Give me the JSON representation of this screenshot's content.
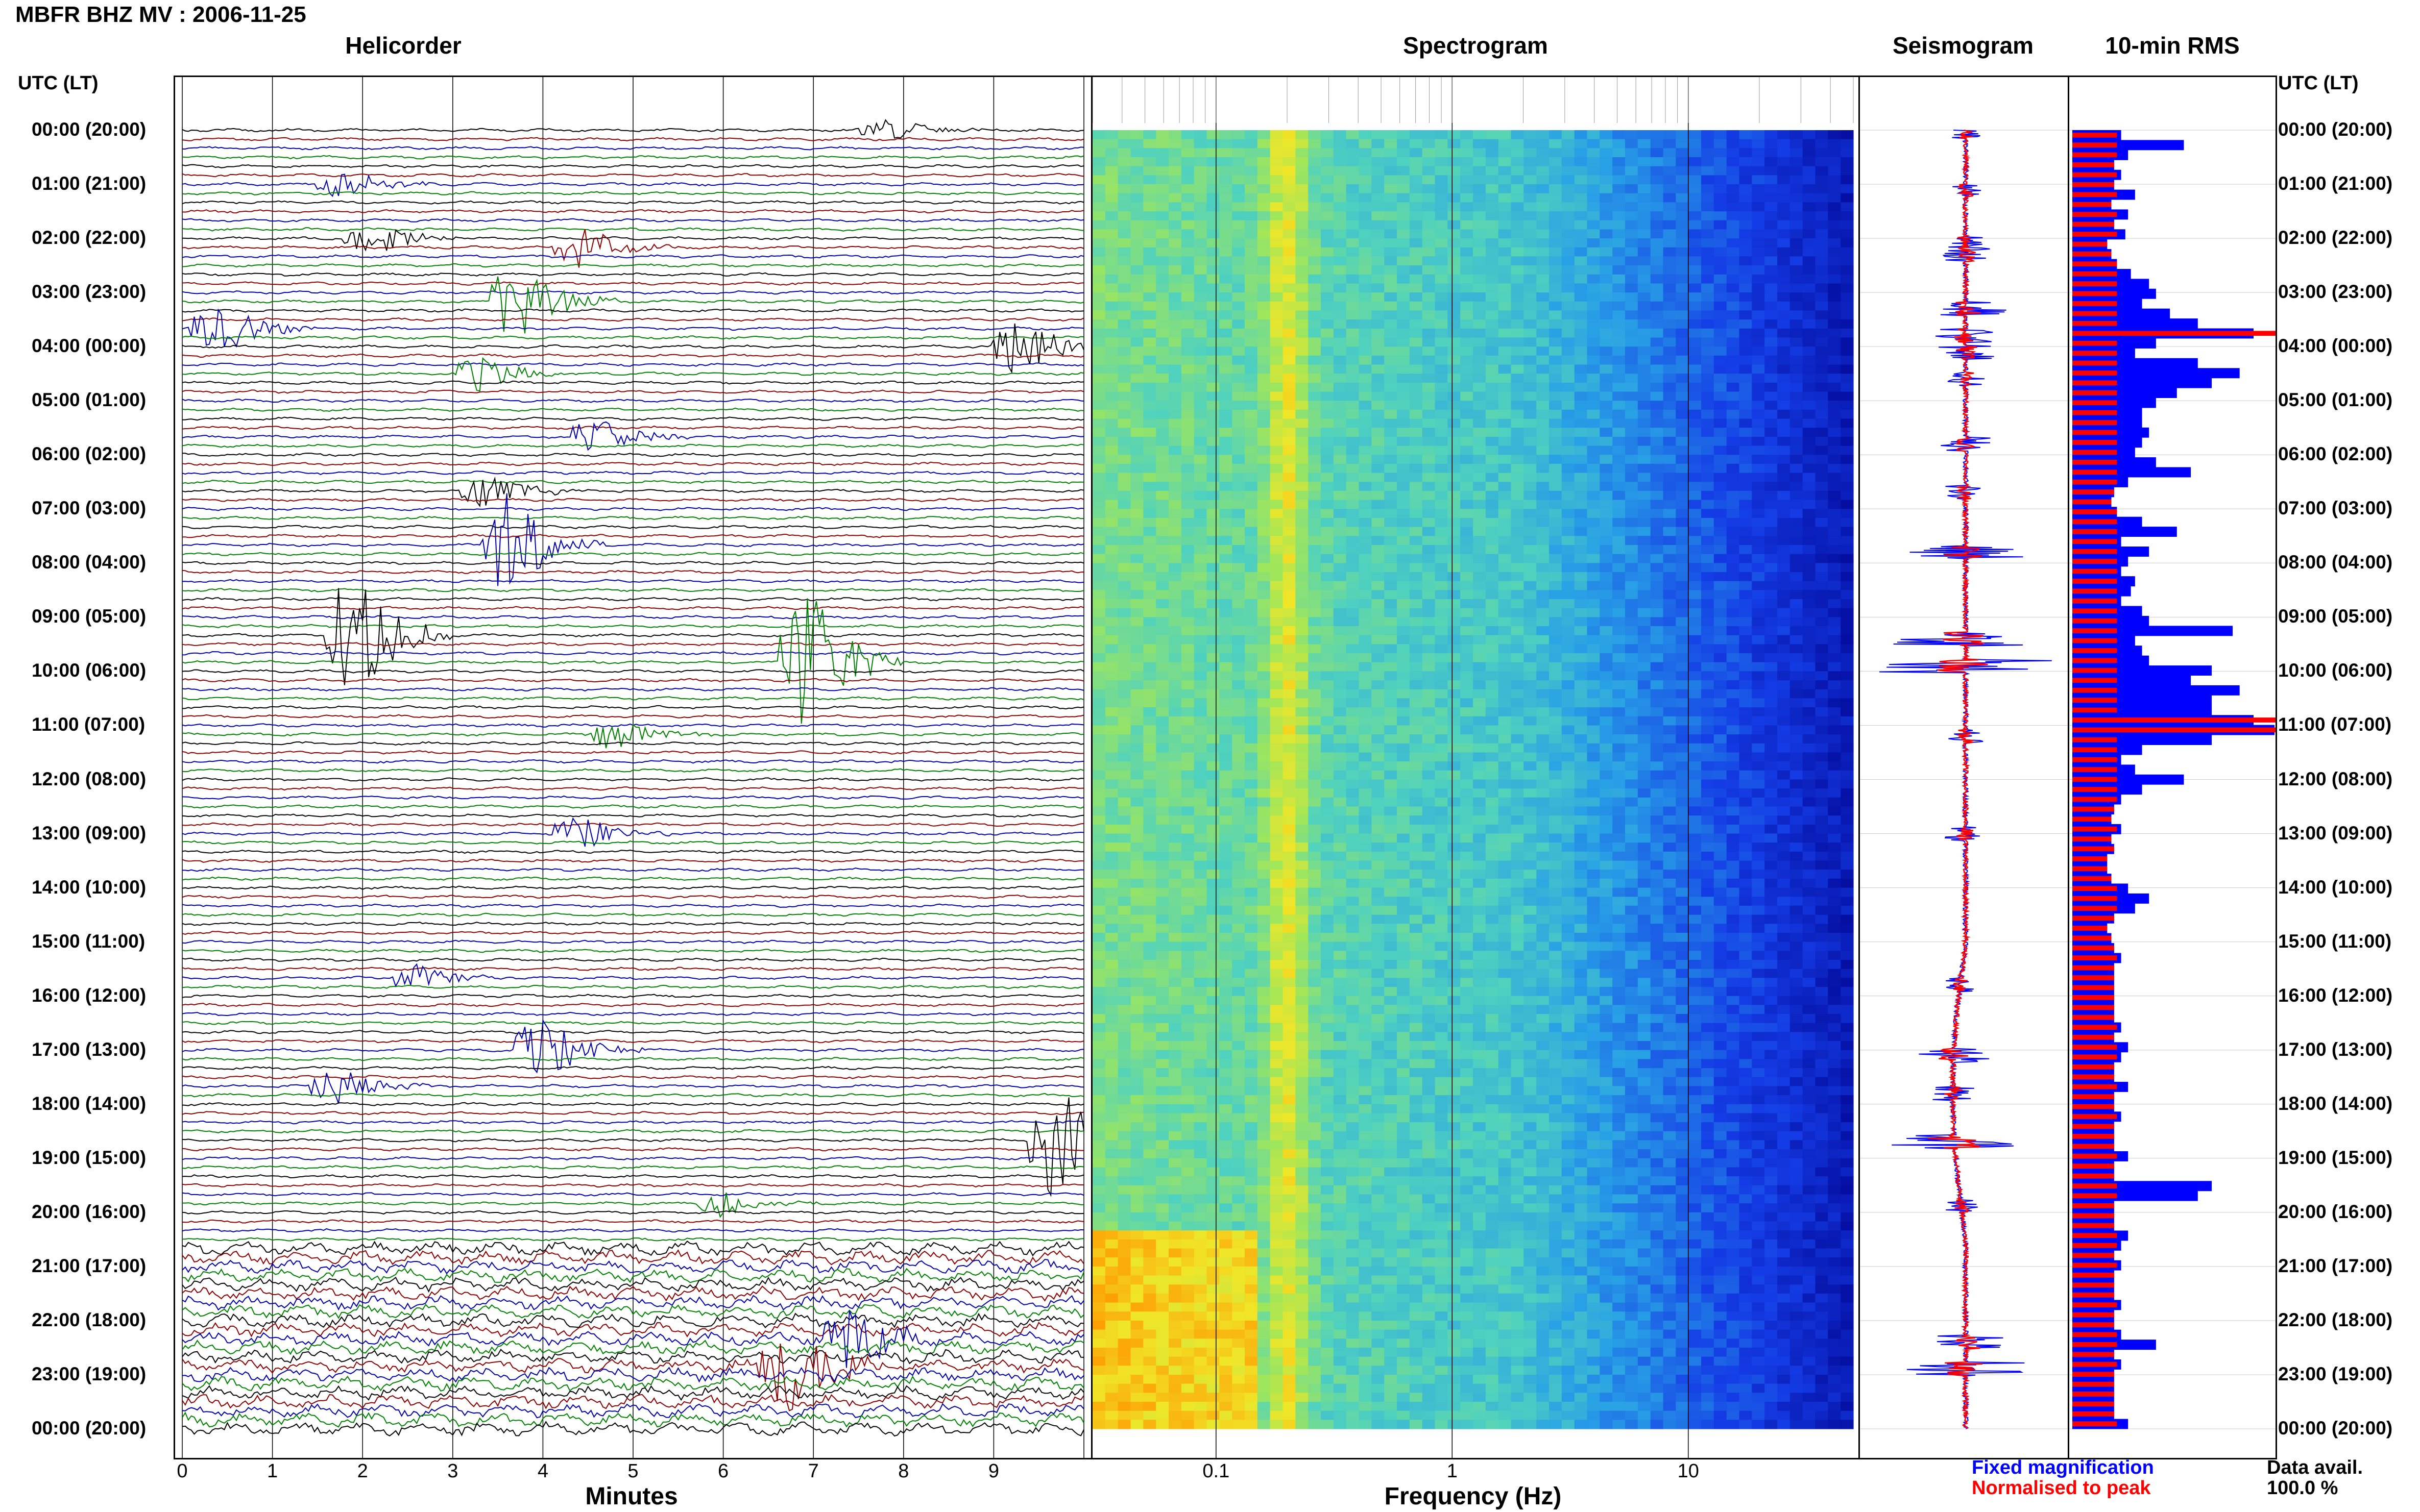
{
  "title": "MBFR BHZ MV : 2006-11-25",
  "panels": {
    "helicorder": "Helicorder",
    "spectrogram": "Spectrogram",
    "seismogram": "Seismogram",
    "rms": "10-min RMS"
  },
  "time_header": "UTC (LT)",
  "time_labels": [
    "00:00 (20:00)",
    "01:00 (21:00)",
    "02:00 (22:00)",
    "03:00 (23:00)",
    "04:00 (00:00)",
    "05:00 (01:00)",
    "06:00 (02:00)",
    "07:00 (03:00)",
    "08:00 (04:00)",
    "09:00 (05:00)",
    "10:00 (06:00)",
    "11:00 (07:00)",
    "12:00 (08:00)",
    "13:00 (09:00)",
    "14:00 (10:00)",
    "15:00 (11:00)",
    "16:00 (12:00)",
    "17:00 (13:00)",
    "18:00 (14:00)",
    "19:00 (15:00)",
    "20:00 (16:00)",
    "21:00 (17:00)",
    "22:00 (18:00)",
    "23:00 (19:00)",
    "00:00 (20:00)"
  ],
  "x_axis": {
    "minutes_label": "Minutes",
    "minutes_ticks": [
      "0",
      "1",
      "2",
      "3",
      "4",
      "5",
      "6",
      "7",
      "8",
      "9"
    ],
    "frequency_label": "Frequency (Hz)",
    "frequency_ticks": [
      "0.1",
      "1",
      "10"
    ]
  },
  "legend": {
    "fixed": "Fixed magnification",
    "normalised": "Normalised to peak"
  },
  "data_avail": {
    "label": "Data avail.",
    "value": "100.0 %"
  },
  "colors": {
    "trace_cycle": [
      "#000000",
      "#8b0000",
      "#0000aa",
      "#008000"
    ],
    "fixed": "#0000ff",
    "normalised": "#ff0000"
  },
  "chart_data": {
    "type": "heatmap",
    "hours_utc": 24,
    "minutes_per_line": 10,
    "helicorder_events": [
      {
        "hour": 0.05,
        "minute": 7.7,
        "amp": 0.9
      },
      {
        "hour": 1.1,
        "minute": 1.7,
        "amp": 1.0
      },
      {
        "hour": 2.1,
        "minute": 2.0,
        "amp": 1.2
      },
      {
        "hour": 2.3,
        "minute": 4.3,
        "amp": 1.5
      },
      {
        "hour": 3.3,
        "minute": 3.6,
        "amp": 2.8
      },
      {
        "hour": 3.8,
        "minute": 0.3,
        "amp": 2.0
      },
      {
        "hour": 4.1,
        "minute": 9.2,
        "amp": 2.2
      },
      {
        "hour": 4.6,
        "minute": 3.2,
        "amp": 1.2
      },
      {
        "hour": 5.8,
        "minute": 4.5,
        "amp": 1.6
      },
      {
        "hour": 6.7,
        "minute": 3.3,
        "amp": 1.3
      },
      {
        "hour": 7.8,
        "minute": 3.5,
        "amp": 4.0
      },
      {
        "hour": 9.4,
        "minute": 1.8,
        "amp": 5.0
      },
      {
        "hour": 9.9,
        "minute": 6.8,
        "amp": 6.0
      },
      {
        "hour": 11.2,
        "minute": 4.7,
        "amp": 1.1
      },
      {
        "hour": 13.0,
        "minute": 4.3,
        "amp": 1.4
      },
      {
        "hour": 15.8,
        "minute": 2.5,
        "amp": 1.0
      },
      {
        "hour": 17.1,
        "minute": 3.9,
        "amp": 2.5
      },
      {
        "hour": 17.8,
        "minute": 1.6,
        "amp": 1.5
      },
      {
        "hour": 18.7,
        "minute": 9.6,
        "amp": 5.0
      },
      {
        "hour": 19.9,
        "minute": 5.9,
        "amp": 1.0
      },
      {
        "hour": 22.4,
        "minute": 7.3,
        "amp": 2.5
      },
      {
        "hour": 22.9,
        "minute": 6.6,
        "amp": 4.0
      }
    ],
    "rms_fixed": [
      0.35,
      0.8,
      0.4,
      0.3,
      0.35,
      0.3,
      0.45,
      0.28,
      0.4,
      0.3,
      0.38,
      0.25,
      0.28,
      0.32,
      0.42,
      0.55,
      0.6,
      0.5,
      0.7,
      0.9,
      1.3,
      0.6,
      0.45,
      0.9,
      1.2,
      1.0,
      0.75,
      0.6,
      0.5,
      0.5,
      0.55,
      0.5,
      0.45,
      0.6,
      0.85,
      0.4,
      0.3,
      0.28,
      0.32,
      0.5,
      0.75,
      0.35,
      0.55,
      0.4,
      0.35,
      0.45,
      0.42,
      0.35,
      0.5,
      0.55,
      1.15,
      0.45,
      0.5,
      0.55,
      1.0,
      0.85,
      1.2,
      1.0,
      1.0,
      1.3,
      1.45,
      1.0,
      0.5,
      0.35,
      0.45,
      0.8,
      0.5,
      0.35,
      0.3,
      0.28,
      0.35,
      0.28,
      0.3,
      0.25,
      0.25,
      0.28,
      0.4,
      0.55,
      0.45,
      0.3,
      0.25,
      0.28,
      0.3,
      0.35,
      0.3,
      0.3,
      0.3,
      0.3,
      0.3,
      0.3,
      0.35,
      0.3,
      0.4,
      0.35,
      0.3,
      0.3,
      0.4,
      0.3,
      0.3,
      0.35,
      0.3,
      0.3,
      0.3,
      0.4,
      0.3,
      0.3,
      1.0,
      0.9,
      0.3,
      0.3,
      0.3,
      0.4,
      0.35,
      0.3,
      0.35,
      0.3,
      0.3,
      0.3,
      0.35,
      0.3,
      0.3,
      0.35,
      0.6,
      0.3,
      0.35,
      0.3,
      0.3,
      0.3,
      0.3,
      0.3,
      0.4
    ],
    "rms_normalised_note": "",
    "spectrogram_frequency_range_hz": [
      0.03,
      50
    ],
    "spectrogram_peak_hz": 0.2
  }
}
